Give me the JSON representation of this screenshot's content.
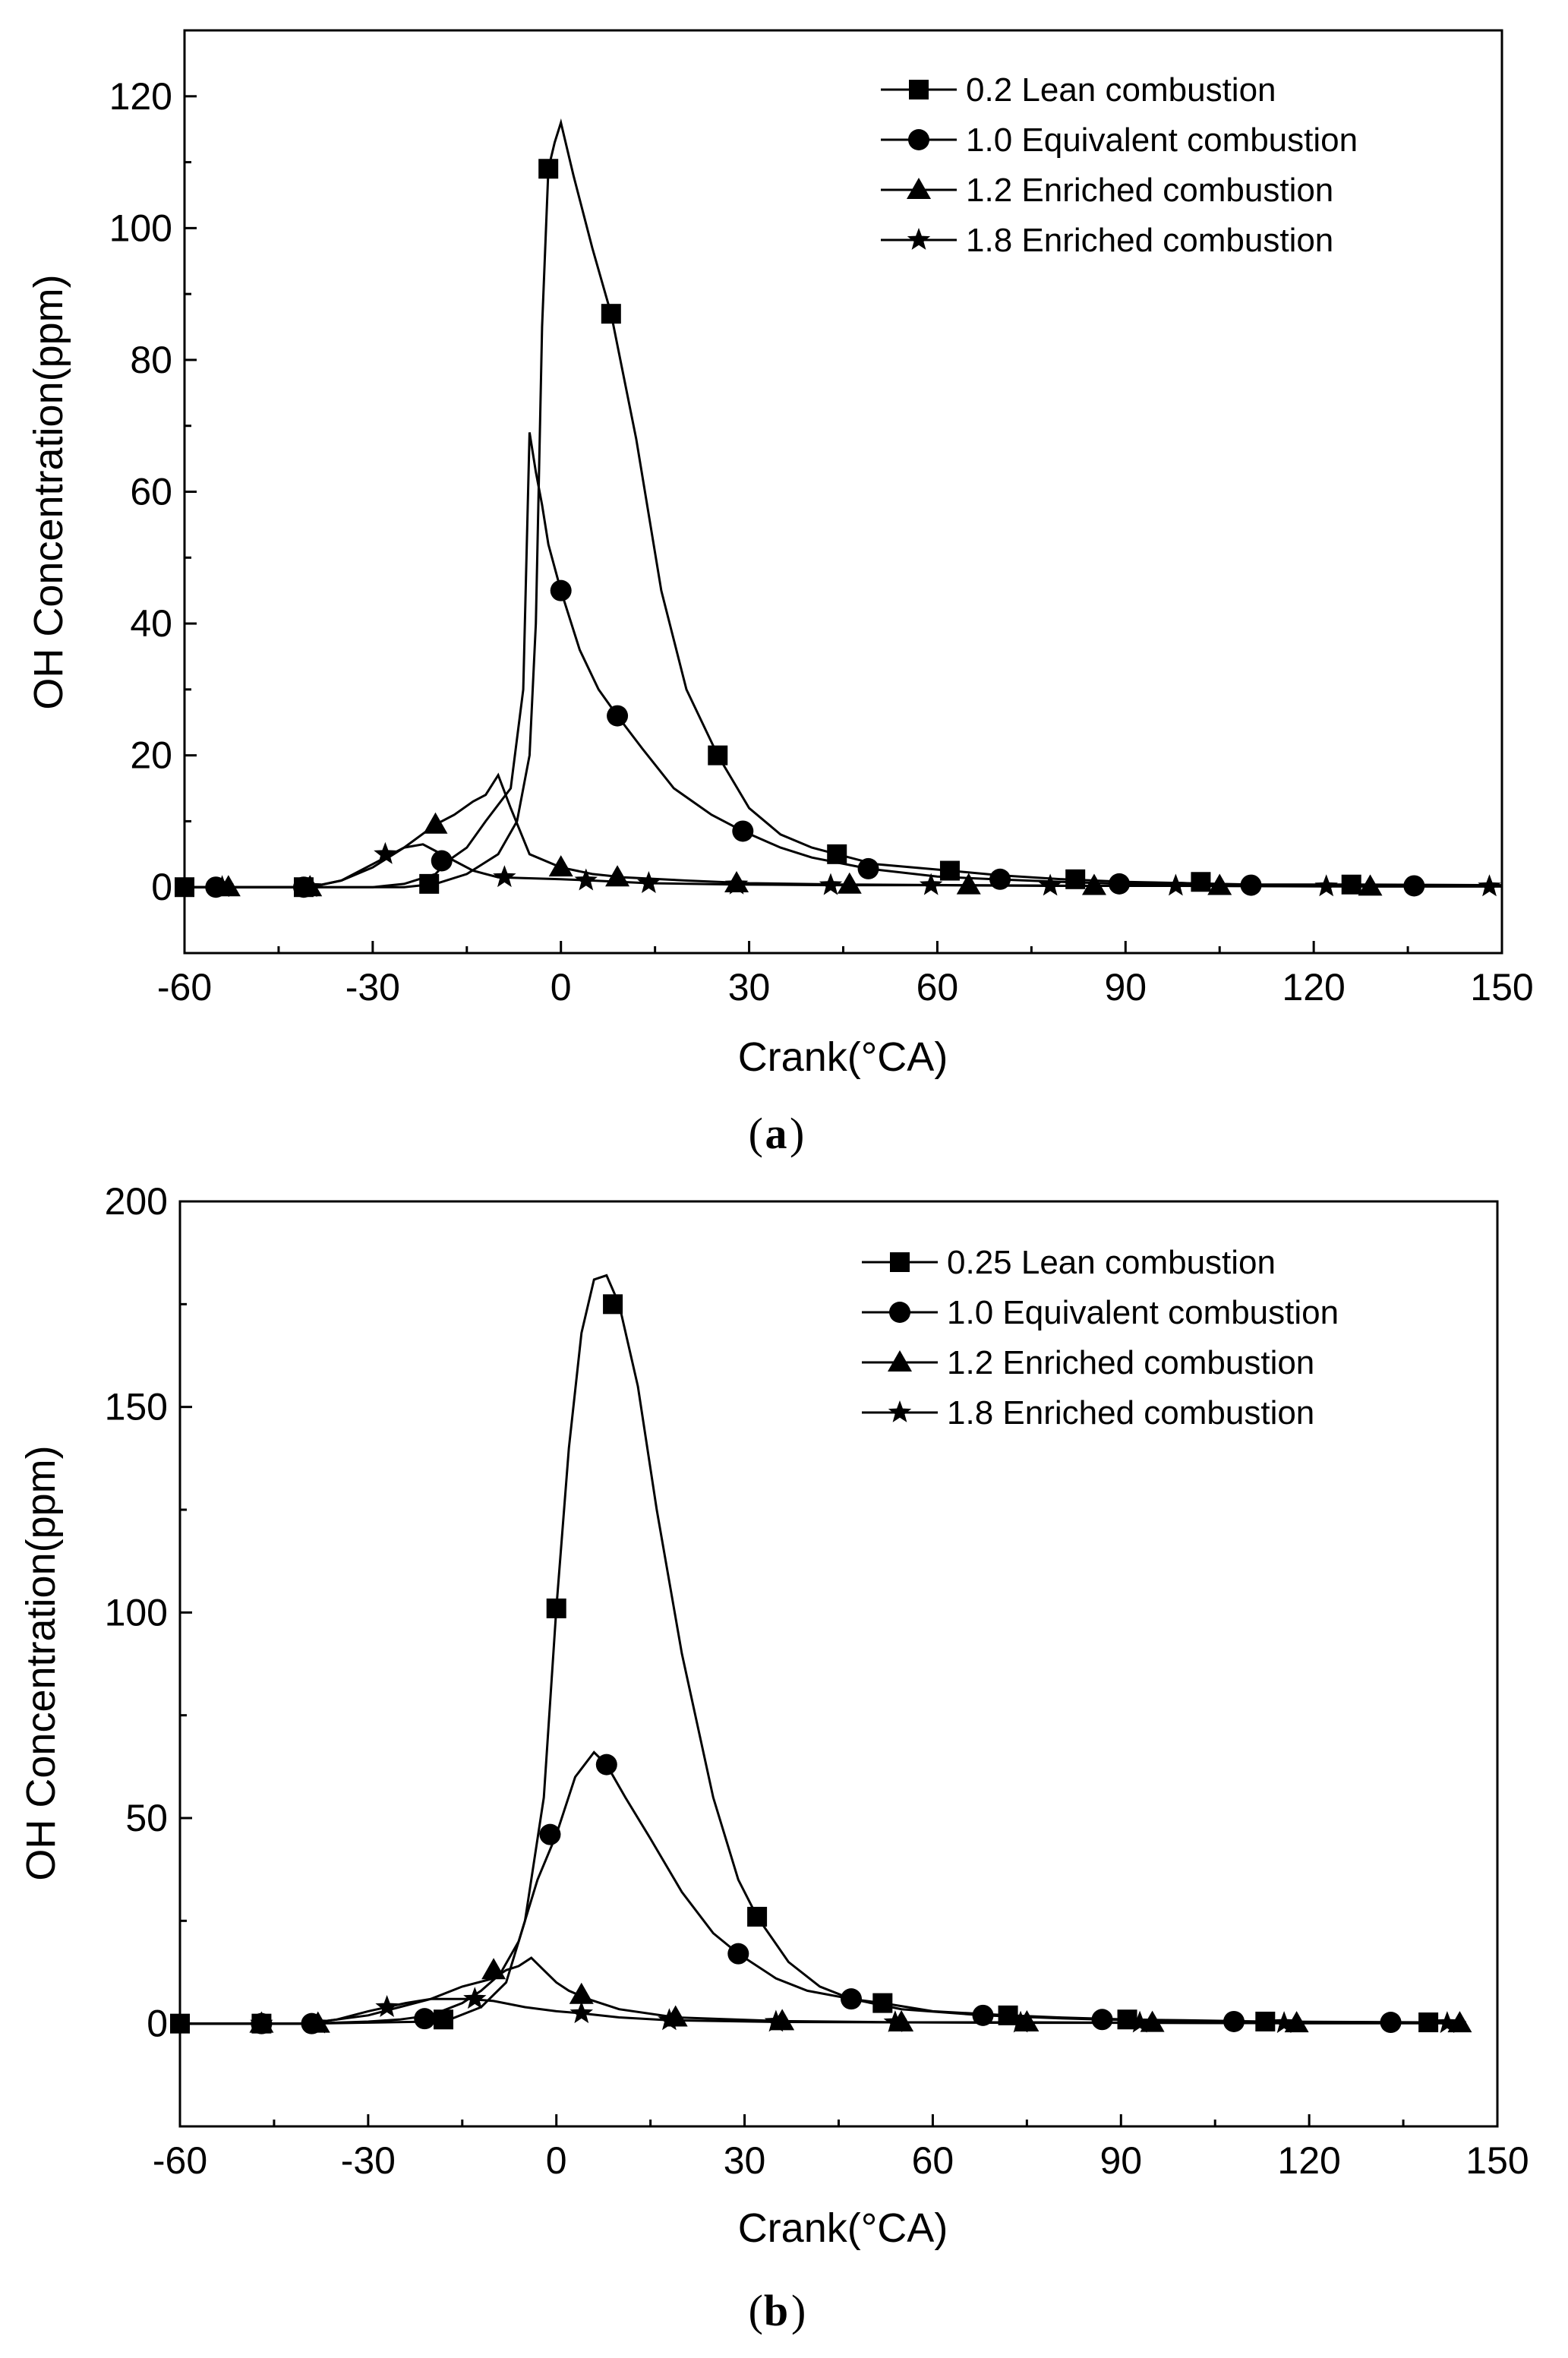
{
  "chart_data": [
    {
      "id": "a",
      "type": "line",
      "panel_label": "a",
      "xlabel": "Crank(°CA)",
      "ylabel": "OH Concentration(ppm)",
      "xlim": [
        -60,
        150
      ],
      "ylim": [
        -10,
        130
      ],
      "xticks": [
        -60,
        -30,
        0,
        30,
        60,
        90,
        120,
        150
      ],
      "yticks": [
        0,
        20,
        40,
        60,
        80,
        100,
        120
      ],
      "legend_position": "top-right",
      "series": [
        {
          "name": "0.2 Lean combustion",
          "marker": "square",
          "x": [
            -60,
            -40,
            -25,
            -20,
            -15,
            -10,
            -7,
            -5,
            -4,
            -3,
            -2,
            -1,
            0,
            2,
            5,
            8,
            12,
            16,
            20,
            25,
            30,
            35,
            40,
            44,
            50,
            62,
            70,
            80,
            90,
            100,
            110,
            126,
            150
          ],
          "y": [
            0,
            0,
            0,
            0.5,
            2,
            5,
            10,
            20,
            40,
            85,
            109,
            113,
            116,
            108,
            97,
            87,
            68,
            45,
            30,
            20,
            12,
            8,
            6,
            5,
            3.5,
            2.5,
            1.8,
            1.2,
            0.8,
            0.6,
            0.4,
            0.4,
            0.3
          ],
          "marker_x": [
            -60,
            -41,
            -21,
            -2,
            8,
            25,
            44,
            62,
            82,
            102,
            126
          ],
          "marker_y": [
            0,
            0,
            0.5,
            109,
            87,
            20,
            5,
            2.5,
            1.2,
            0.8,
            0.4
          ]
        },
        {
          "name": "1.0 Equivalent combustion",
          "marker": "circle",
          "x": [
            -60,
            -40,
            -30,
            -25,
            -20,
            -18,
            -15,
            -12,
            -8,
            -6,
            -5,
            -4,
            -3,
            -2,
            0,
            3,
            6,
            9,
            13,
            18,
            24,
            29,
            35,
            40,
            49,
            60,
            69,
            80,
            89,
            100,
            110,
            136,
            150
          ],
          "y": [
            0,
            0,
            0,
            0.5,
            2,
            4,
            6,
            10,
            15,
            30,
            69,
            63,
            58,
            52,
            45,
            36,
            30,
            26,
            21,
            15,
            11,
            8.5,
            6,
            4.5,
            2.8,
            1.6,
            1.2,
            0.8,
            0.5,
            0.4,
            0.3,
            0.2,
            0.2
          ],
          "marker_x": [
            -55,
            -41,
            -19,
            0,
            9,
            29,
            49,
            70,
            89,
            110,
            136
          ],
          "marker_y": [
            0,
            0,
            4,
            45,
            26,
            8.5,
            2.8,
            1.2,
            0.5,
            0.3,
            0.2
          ]
        },
        {
          "name": "1.2 Enriched combustion",
          "marker": "triangle",
          "x": [
            -60,
            -45,
            -40,
            -35,
            -30,
            -25,
            -20,
            -17,
            -14,
            -12,
            -10,
            -8,
            -5,
            0,
            5,
            10,
            20,
            30,
            45,
            65,
            85,
            105,
            130,
            150
          ],
          "y": [
            0,
            0,
            0,
            1,
            3,
            6,
            9.5,
            11,
            13,
            14,
            17,
            12,
            5,
            3,
            2,
            1.5,
            1,
            0.6,
            0.4,
            0.3,
            0.2,
            0.2,
            0.1,
            0.1
          ],
          "marker_x": [
            -53,
            -40,
            -20,
            0,
            9,
            28,
            46,
            65,
            85,
            105,
            129
          ],
          "marker_y": [
            0,
            0,
            9.5,
            3,
            1.5,
            0.6,
            0.4,
            0.3,
            0.2,
            0.2,
            0.1
          ]
        },
        {
          "name": "1.8 Enriched combustion",
          "marker": "star",
          "x": [
            -60,
            -40,
            -35,
            -30,
            -27,
            -25,
            -22,
            -20,
            -17,
            -14,
            -10,
            0,
            5,
            14,
            28,
            43,
            59,
            78,
            98,
            122,
            148,
            150
          ],
          "y": [
            0,
            0,
            1,
            3.5,
            5,
            6,
            6.5,
            5.5,
            4,
            2.5,
            1.5,
            1.2,
            1,
            0.6,
            0.4,
            0.3,
            0.3,
            0.2,
            0.2,
            0.1,
            0.1,
            0.1
          ],
          "marker_x": [
            -54,
            -40,
            -28,
            -9,
            4,
            14,
            28,
            43,
            59,
            78,
            98,
            122,
            148
          ],
          "marker_y": [
            0,
            0,
            5,
            1.5,
            1,
            0.6,
            0.4,
            0.3,
            0.3,
            0.2,
            0.2,
            0.1,
            0.1
          ]
        }
      ]
    },
    {
      "id": "b",
      "type": "line",
      "panel_label": "b",
      "xlabel": "Crank(°CA)",
      "ylabel": "OH Concentration(ppm)",
      "xlim": [
        -60,
        150
      ],
      "ylim": [
        -25,
        200
      ],
      "xticks": [
        -60,
        -30,
        0,
        30,
        60,
        90,
        120,
        150
      ],
      "yticks": [
        0,
        50,
        100,
        150,
        200
      ],
      "legend_position": "top-right",
      "series": [
        {
          "name": "0.25 Lean combustion",
          "marker": "square",
          "x": [
            -60,
            -40,
            -20,
            -17,
            -12,
            -8,
            -5,
            -2,
            0,
            2,
            4,
            6,
            8,
            10,
            13,
            16,
            20,
            25,
            29,
            32,
            37,
            42,
            47,
            52,
            60,
            72,
            80,
            91,
            100,
            113,
            139,
            145
          ],
          "y": [
            0,
            0,
            0.5,
            1,
            4,
            10,
            25,
            55,
            101,
            140,
            168,
            181,
            182,
            175,
            155,
            125,
            90,
            55,
            35,
            26,
            15,
            9,
            6,
            5,
            3,
            2,
            1.5,
            1,
            0.8,
            0.5,
            0.3,
            0.3
          ],
          "marker_x": [
            -60,
            -47,
            -18,
            0,
            9,
            32,
            52,
            72,
            91,
            113,
            139
          ],
          "marker_y": [
            0,
            0,
            1,
            101,
            175,
            26,
            5,
            2,
            1,
            0.5,
            0.3
          ]
        },
        {
          "name": "1.0 Equivalent combustion",
          "marker": "circle",
          "x": [
            -60,
            -40,
            -30,
            -25,
            -20,
            -15,
            -12,
            -9,
            -6,
            -3,
            0,
            3,
            6,
            8,
            11,
            15,
            20,
            25,
            29,
            35,
            40,
            47,
            55,
            68,
            80,
            87,
            100,
            108,
            133,
            145
          ],
          "y": [
            0,
            0,
            0.5,
            1,
            2,
            5,
            8,
            12,
            20,
            35,
            46,
            60,
            66,
            63,
            55,
            45,
            32,
            22,
            17,
            11,
            8,
            6,
            3.5,
            2,
            1.3,
            1,
            0.6,
            0.5,
            0.3,
            0.3
          ],
          "marker_x": [
            -47,
            -39,
            -21,
            -1,
            8,
            29,
            47,
            68,
            87,
            108,
            133
          ],
          "marker_y": [
            0,
            0,
            1.2,
            46,
            63,
            17,
            6,
            2,
            1,
            0.5,
            0.3
          ]
        },
        {
          "name": "1.2 Enriched combustion",
          "marker": "triangle",
          "x": [
            -60,
            -40,
            -35,
            -30,
            -25,
            -20,
            -15,
            -10,
            -8,
            -6,
            -4,
            -2,
            0,
            2,
            5,
            10,
            19,
            36,
            55,
            75,
            95,
            118,
            144
          ],
          "y": [
            0,
            0,
            1,
            2,
            4,
            6,
            9,
            11,
            13,
            14,
            16,
            13,
            10,
            8,
            6,
            3.5,
            1.5,
            0.6,
            0.3,
            0.3,
            0.2,
            0.1,
            0.1
          ],
          "marker_x": [
            -47,
            -38,
            -10,
            4,
            19,
            36,
            55,
            75,
            95,
            118,
            144
          ],
          "marker_y": [
            0,
            0,
            13,
            7,
            1.5,
            0.6,
            0.3,
            0.3,
            0.2,
            0.1,
            0.1
          ]
        },
        {
          "name": "1.8 Enriched combustion",
          "marker": "star",
          "x": [
            -60,
            -40,
            -35,
            -30,
            -27,
            -24,
            -20,
            -17,
            -14,
            -10,
            -5,
            0,
            4,
            10,
            18,
            35,
            54,
            74,
            93,
            116,
            142
          ],
          "y": [
            0,
            0,
            1,
            3,
            4,
            5,
            6,
            6,
            6,
            5.5,
            4,
            3,
            2.5,
            1.5,
            0.8,
            0.4,
            0.3,
            0.2,
            0.2,
            0.1,
            0.1
          ],
          "marker_x": [
            -47,
            -38,
            -27,
            -13,
            4,
            18,
            35,
            54,
            74,
            93,
            116,
            142
          ],
          "marker_y": [
            0,
            0,
            4,
            6,
            2.5,
            0.8,
            0.4,
            0.3,
            0.2,
            0.2,
            0.1,
            0.1
          ]
        }
      ]
    }
  ]
}
